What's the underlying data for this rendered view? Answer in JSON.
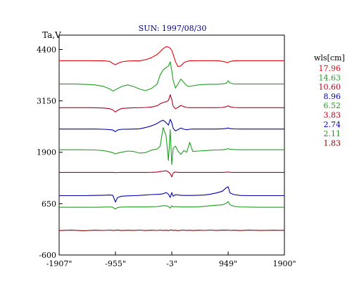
{
  "chart_data": {
    "type": "line",
    "title": "SUN: 1997/08/30",
    "ylabel": "Ta,V",
    "xlabel": "",
    "xlim": [
      -1907,
      1900
    ],
    "ylim": [
      -600,
      4750
    ],
    "xticks": [
      {
        "value": -1907,
        "label": "-1907\""
      },
      {
        "value": -955,
        "label": "-955\""
      },
      {
        "value": -3,
        "label": "-3\""
      },
      {
        "value": 949,
        "label": "949\""
      },
      {
        "value": 1900,
        "label": "1900\""
      }
    ],
    "yticks": [
      {
        "value": 4400,
        "label": "4400"
      },
      {
        "value": 3150,
        "label": "3150"
      },
      {
        "value": 1900,
        "label": "1900"
      },
      {
        "value": 650,
        "label": "650"
      },
      {
        "value": -600,
        "label": "-600"
      }
    ],
    "legend_title": "wls[cm]",
    "legend_position": "right",
    "x": [
      -1907,
      -1700,
      -1500,
      -1300,
      -1150,
      -1050,
      -1000,
      -955,
      -920,
      -850,
      -750,
      -650,
      -550,
      -450,
      -350,
      -250,
      -200,
      -150,
      -100,
      -60,
      -30,
      -3,
      20,
      60,
      100,
      150,
      200,
      250,
      300,
      350,
      450,
      550,
      650,
      750,
      850,
      920,
      949,
      980,
      1050,
      1150,
      1300,
      1500,
      1700,
      1900
    ],
    "series": [
      {
        "name": "17.96",
        "color": "#e8000b",
        "values": [
          4130,
          4130,
          4130,
          4128,
          4125,
          4110,
          4060,
          4030,
          4060,
          4100,
          4120,
          4125,
          4125,
          4150,
          4200,
          4280,
          4350,
          4420,
          4470,
          4460,
          4430,
          4380,
          4280,
          4100,
          3990,
          4000,
          4080,
          4110,
          4125,
          4128,
          4130,
          4130,
          4130,
          4130,
          4115,
          4090,
          4080,
          4110,
          4125,
          4130,
          4130,
          4130,
          4130,
          4130
        ]
      },
      {
        "name": "14.63",
        "color": "#1e9e1e",
        "values": [
          3560,
          3560,
          3555,
          3540,
          3500,
          3440,
          3390,
          3420,
          3450,
          3500,
          3540,
          3500,
          3440,
          3400,
          3450,
          3560,
          3780,
          3900,
          3960,
          4000,
          4100,
          3880,
          3650,
          3460,
          3560,
          3680,
          3600,
          3520,
          3500,
          3520,
          3540,
          3550,
          3555,
          3555,
          3560,
          3580,
          3640,
          3590,
          3560,
          3560,
          3560,
          3560,
          3560,
          3560
        ]
      },
      {
        "name": "10.60",
        "color": "#b0001c",
        "values": [
          2985,
          2985,
          2985,
          2982,
          2975,
          2960,
          2930,
          2880,
          2920,
          2965,
          2975,
          2982,
          2985,
          2990,
          3000,
          3030,
          3080,
          3110,
          3130,
          3160,
          3300,
          3180,
          3020,
          2960,
          2990,
          3040,
          3010,
          2990,
          2985,
          2985,
          2985,
          2985,
          2985,
          2985,
          2990,
          3010,
          3030,
          3005,
          2990,
          2985,
          2985,
          2985,
          2985,
          2985
        ]
      },
      {
        "name": "8.96",
        "color": "#0000a8",
        "values": [
          2465,
          2465,
          2465,
          2465,
          2460,
          2450,
          2440,
          2400,
          2440,
          2460,
          2462,
          2465,
          2470,
          2500,
          2540,
          2600,
          2650,
          2680,
          2620,
          2560,
          2700,
          2620,
          2480,
          2420,
          2450,
          2490,
          2460,
          2450,
          2460,
          2465,
          2465,
          2465,
          2465,
          2465,
          2470,
          2480,
          2490,
          2475,
          2468,
          2465,
          2465,
          2465,
          2465,
          2465
        ]
      },
      {
        "name": "6.52",
        "color": "#1e9e1e",
        "values": [
          1960,
          1960,
          1960,
          1955,
          1940,
          1910,
          1890,
          1860,
          1880,
          1900,
          1930,
          1920,
          1880,
          1890,
          1950,
          1980,
          2050,
          2500,
          2300,
          1700,
          2450,
          1600,
          2000,
          2050,
          1930,
          1850,
          1940,
          1900,
          2140,
          1920,
          1930,
          1940,
          1950,
          1955,
          1960,
          1975,
          1990,
          1975,
          1965,
          1960,
          1960,
          1960,
          1960,
          1960
        ]
      },
      {
        "name": "3.83",
        "color": "#b0001c",
        "values": [
          1410,
          1410,
          1410,
          1410,
          1410,
          1410,
          1410,
          1405,
          1408,
          1410,
          1410,
          1410,
          1410,
          1410,
          1412,
          1418,
          1430,
          1440,
          1450,
          1420,
          1380,
          1300,
          1400,
          1420,
          1410,
          1410,
          1410,
          1410,
          1410,
          1410,
          1410,
          1410,
          1410,
          1410,
          1410,
          1415,
          1420,
          1412,
          1410,
          1410,
          1410,
          1410,
          1410,
          1410
        ]
      },
      {
        "name": "2.74",
        "color": "#0000a8",
        "values": [
          845,
          845,
          845,
          850,
          855,
          860,
          855,
          690,
          800,
          830,
          840,
          845,
          850,
          860,
          870,
          875,
          880,
          890,
          920,
          880,
          800,
          920,
          830,
          870,
          860,
          855,
          850,
          850,
          850,
          850,
          855,
          860,
          880,
          910,
          950,
          1040,
          1060,
          910,
          870,
          850,
          845,
          845,
          845,
          845
        ]
      },
      {
        "name": "2.11",
        "color": "#1e9e1e",
        "values": [
          560,
          560,
          560,
          560,
          565,
          570,
          560,
          520,
          555,
          565,
          570,
          570,
          570,
          570,
          575,
          580,
          590,
          600,
          600,
          580,
          540,
          600,
          570,
          580,
          575,
          570,
          570,
          570,
          570,
          570,
          575,
          585,
          600,
          610,
          620,
          660,
          700,
          620,
          585,
          570,
          565,
          560,
          560,
          560
        ]
      },
      {
        "name": "1.83",
        "color": "#8b0000",
        "values": [
          -5,
          5,
          -8,
          3,
          -2,
          6,
          -4,
          2,
          8,
          -6,
          3,
          -3,
          6,
          -5,
          4,
          -2,
          7,
          -4,
          3,
          -6,
          5,
          10,
          -3,
          4,
          -7,
          2,
          6,
          -4,
          3,
          -5,
          4,
          -2,
          7,
          -3,
          5,
          4,
          8,
          -2,
          3,
          -6,
          5,
          -3,
          4,
          0
        ]
      }
    ]
  }
}
